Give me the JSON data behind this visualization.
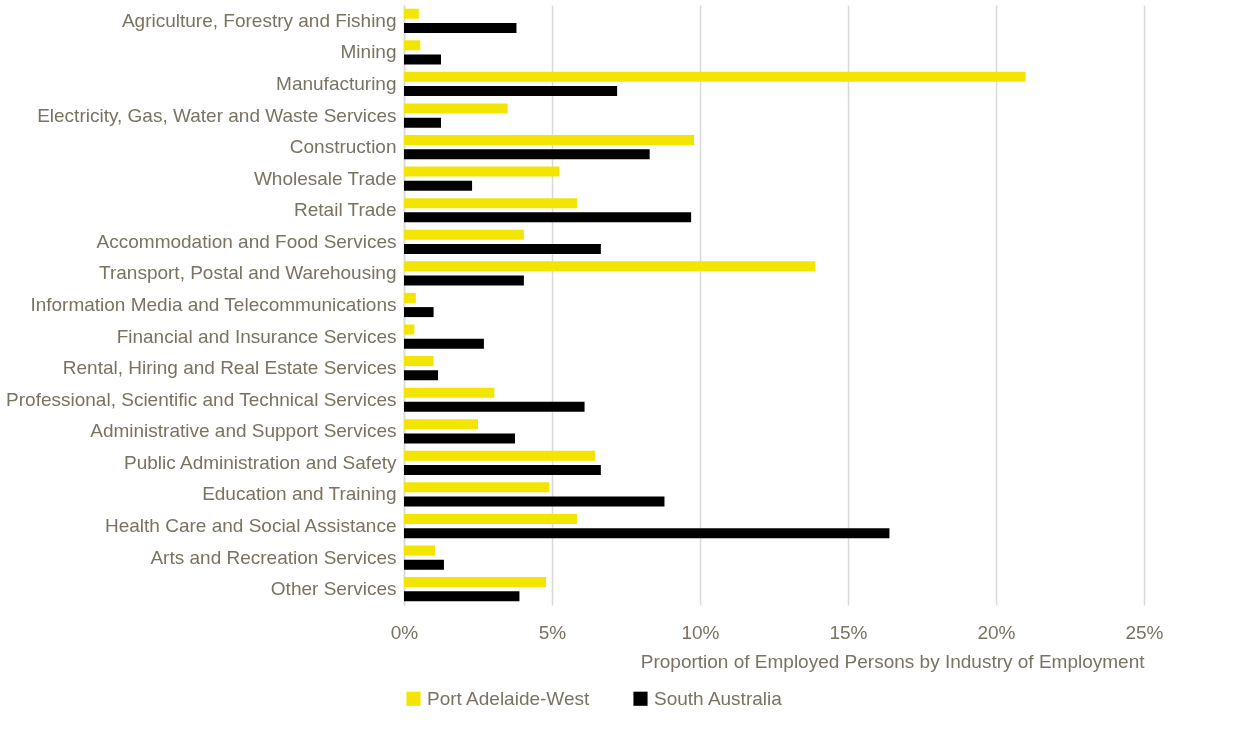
{
  "chart_data": {
    "type": "bar",
    "orientation": "horizontal",
    "categories": [
      "Agriculture, Forestry and Fishing",
      "Mining",
      "Manufacturing",
      "Electricity, Gas, Water and Waste Services",
      "Construction",
      "Wholesale Trade",
      "Retail Trade",
      "Accommodation and Food Services",
      "Transport, Postal and Warehousing",
      "Information Media and Telecommunications",
      "Financial and Insurance Services",
      "Rental, Hiring and Real Estate Services",
      "Professional, Scientific and Technical Services",
      "Administrative and Support Services",
      "Public Administration and Safety",
      "Education and Training",
      "Health Care and Social Assistance",
      "Arts and Recreation Services",
      "Other Services"
    ],
    "series": [
      {
        "name": "Port Adelaide-West",
        "color": "#f3e500",
        "values": [
          0.5,
          0.55,
          21.0,
          3.5,
          9.8,
          5.25,
          5.85,
          4.05,
          13.9,
          0.4,
          0.35,
          1.0,
          3.05,
          2.5,
          6.45,
          4.9,
          5.85,
          1.05,
          4.8
        ]
      },
      {
        "name": "South Australia",
        "color": "#000000",
        "values": [
          3.8,
          1.25,
          7.2,
          1.25,
          8.3,
          2.3,
          9.7,
          6.65,
          4.05,
          1.0,
          2.7,
          1.15,
          6.1,
          3.75,
          6.65,
          8.8,
          16.4,
          1.35,
          3.9
        ]
      }
    ],
    "xlabel": "Proportion of Employed Persons by Industry of Employment",
    "xlim": [
      0,
      25
    ],
    "xticks": [
      {
        "value": 0,
        "label": "0%"
      },
      {
        "value": 5,
        "label": "5%"
      },
      {
        "value": 10,
        "label": "10%"
      },
      {
        "value": 15,
        "label": "15%"
      },
      {
        "value": 20,
        "label": "20%"
      },
      {
        "value": 25,
        "label": "25%"
      }
    ],
    "grid": "x",
    "legend": "bottom"
  }
}
